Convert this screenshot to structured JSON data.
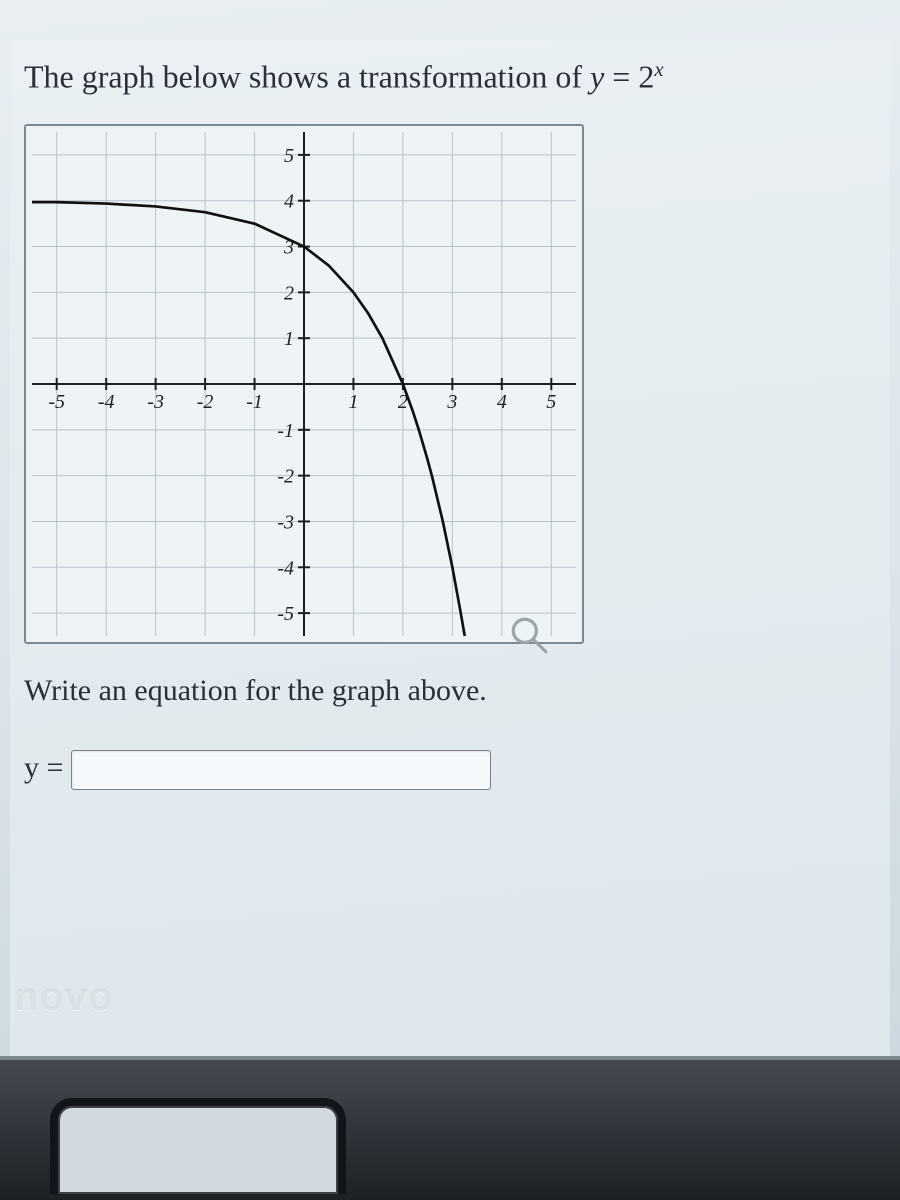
{
  "question": {
    "lead": "The graph below shows a transformation of ",
    "eq_lhs": "y",
    "eq_op": " = ",
    "eq_base": "2",
    "eq_exp": "x"
  },
  "chart": {
    "type": "line",
    "xlim": [
      -5.5,
      5.5
    ],
    "ylim": [
      -5.5,
      5.5
    ],
    "xtick_step": 1,
    "ytick_step": 1,
    "x_labels": [
      "-5",
      "-4",
      "-3",
      "-2",
      "-1",
      "1",
      "2",
      "3",
      "4",
      "5"
    ],
    "y_labels": [
      "5",
      "4",
      "3",
      "2",
      "1",
      "-1",
      "-2",
      "-3",
      "-4",
      "-5"
    ],
    "background_color": "#eef3f6",
    "grid_color": "#b8c2c9",
    "axis_color": "#1f1f1f",
    "tick_font_size": 20,
    "tick_font_style": "italic",
    "curve": {
      "color": "#111111",
      "width": 2.7,
      "asymptote_y": 4,
      "points": [
        [
          -5.5,
          3.97
        ],
        [
          -5,
          3.969
        ],
        [
          -4,
          3.938
        ],
        [
          -3,
          3.875
        ],
        [
          -2,
          3.75
        ],
        [
          -1,
          3.5
        ],
        [
          0,
          3.0
        ],
        [
          0.5,
          2.586
        ],
        [
          1,
          2.0
        ],
        [
          1.3,
          1.538
        ],
        [
          1.585,
          1.0
        ],
        [
          2,
          0.0
        ],
        [
          2.2,
          -0.595
        ],
        [
          2.322,
          -1.0
        ],
        [
          2.5,
          -1.657
        ],
        [
          2.6,
          -2.063
        ],
        [
          2.807,
          -3.0
        ],
        [
          3.0,
          -4.0
        ],
        [
          3.17,
          -5.0
        ],
        [
          3.25,
          -5.5
        ]
      ]
    }
  },
  "prompt2": "Write an equation for the graph above.",
  "answer": {
    "label": "y =",
    "value": "",
    "placeholder": ""
  },
  "brand": "novo",
  "magnifier_icon": "magnifier"
}
